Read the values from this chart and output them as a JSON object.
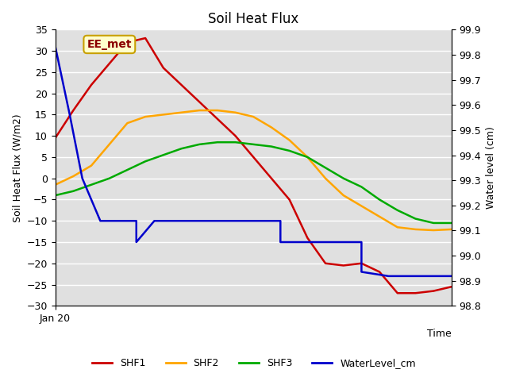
{
  "title": "Soil Heat Flux",
  "ylabel_left": "Soil Heat Flux (W/m2)",
  "ylabel_right": "Water level (cm)",
  "xlabel": "Time",
  "xlim": [
    0,
    22
  ],
  "ylim_left": [
    -30,
    35
  ],
  "ylim_right": [
    98.8,
    99.9
  ],
  "yticks_left": [
    -30,
    -25,
    -20,
    -15,
    -10,
    -5,
    0,
    5,
    10,
    15,
    20,
    25,
    30,
    35
  ],
  "yticks_right": [
    98.8,
    98.9,
    99.0,
    99.1,
    99.2,
    99.3,
    99.4,
    99.5,
    99.6,
    99.7,
    99.8,
    99.9
  ],
  "x_tick_labels": [
    "Jan 20"
  ],
  "x_tick_positions": [
    0
  ],
  "plot_bg": "#e0e0e0",
  "grid_color": "#ffffff",
  "annotation_text": "EE_met",
  "annotation_color": "#8b0000",
  "annotation_bg": "#ffffcc",
  "annotation_border": "#c8a000",
  "shf1_color": "#cc0000",
  "shf2_color": "#ffa500",
  "shf3_color": "#00aa00",
  "wl_color": "#0000cc",
  "shf1_x": [
    0,
    1,
    2,
    3,
    4,
    5,
    6,
    7,
    8,
    9,
    10,
    11,
    12,
    13,
    14,
    15,
    16,
    17,
    18,
    19,
    20,
    21,
    22
  ],
  "shf1_y": [
    9.5,
    16,
    22,
    27,
    32,
    33,
    26,
    22,
    18,
    14,
    10,
    5,
    0,
    -5,
    -14,
    -20,
    -20.5,
    -20,
    -22,
    -27,
    -27,
    -26.5,
    -25.5
  ],
  "shf2_x": [
    0,
    1,
    2,
    3,
    4,
    5,
    6,
    7,
    8,
    9,
    10,
    11,
    12,
    13,
    14,
    15,
    16,
    17,
    18,
    19,
    20,
    21,
    22
  ],
  "shf2_y": [
    -1.5,
    0.5,
    3,
    8,
    13,
    14.5,
    15,
    15.5,
    16,
    16,
    15.5,
    14.5,
    12,
    9,
    5,
    0,
    -4,
    -6.5,
    -9,
    -11.5,
    -12,
    -12.2,
    -12.0
  ],
  "shf3_x": [
    0,
    1,
    2,
    3,
    4,
    5,
    6,
    7,
    8,
    9,
    10,
    11,
    12,
    13,
    14,
    15,
    16,
    17,
    18,
    19,
    20,
    21,
    22
  ],
  "shf3_y": [
    -4,
    -3,
    -1.5,
    0,
    2,
    4,
    5.5,
    7,
    8,
    8.5,
    8.5,
    8,
    7.5,
    6.5,
    5,
    2.5,
    0,
    -2,
    -5,
    -7.5,
    -9.5,
    -10.5,
    -10.5
  ],
  "wl_x": [
    0,
    0.8,
    1.5,
    2.5,
    2.5,
    4.5,
    4.5,
    5.5,
    5.5,
    7.5,
    7.5,
    12.5,
    12.5,
    14.5,
    14.5,
    17.0,
    17.0,
    18.5,
    18.5,
    20.5,
    20.5,
    22
  ],
  "wl_y": [
    31,
    15,
    0,
    -10,
    -10,
    -10,
    -15,
    -10,
    -10,
    -10,
    -10,
    -10,
    -15,
    -15,
    -15,
    -15,
    -22,
    -23,
    -23,
    -23,
    -23,
    -23
  ]
}
